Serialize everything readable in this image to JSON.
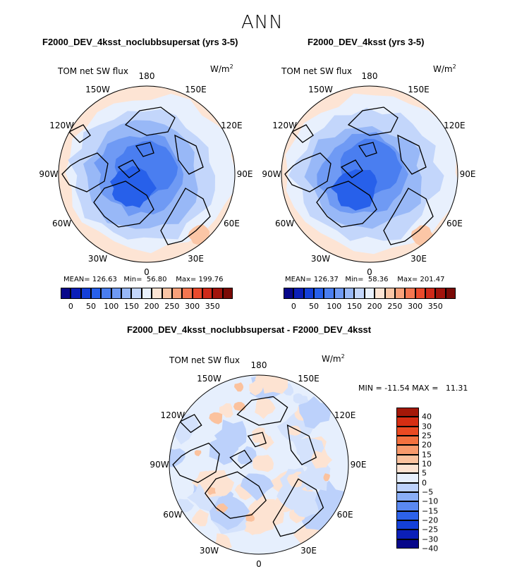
{
  "chart_data": {
    "type": "polar-contour-map",
    "main_title": "ANN",
    "colors": {
      "abs_palette": [
        "#08088a",
        "#0b1fb8",
        "#1440d8",
        "#2760ea",
        "#4a7ef0",
        "#6f9af4",
        "#98b8f7",
        "#c3d6fb",
        "#e8f0fd",
        "#fde4d4",
        "#fbc6a6",
        "#f9a17a",
        "#f47650",
        "#ea4a2c",
        "#cf2a1a",
        "#a2140c",
        "#7a0a06"
      ],
      "diff_palette": [
        "#08088a",
        "#0b1fb8",
        "#1440d8",
        "#2d62ea",
        "#5a88f0",
        "#8aaef6",
        "#bcd1fb",
        "#e6effd",
        "#fde3d2",
        "#fbc29e",
        "#f89a6c",
        "#f3713f",
        "#ea4a22",
        "#d62e13",
        "#a41808"
      ],
      "land_outline": "#000000"
    },
    "panels": [
      {
        "title": "F2000_DEV_4ksst_noclubbsupersat (yrs 3-5)",
        "variable": "TOM net SW flux",
        "units": "W/m",
        "units_exp": "2",
        "stats": {
          "mean_label": "MEAN=",
          "mean": "126.63",
          "min_label": "Min=",
          "min": "56.80",
          "max_label": "Max=",
          "max": "199.76"
        },
        "colorbar_ticks": [
          "0",
          "50",
          "100",
          "150",
          "200",
          "250",
          "300",
          "350"
        ],
        "lon_labels": [
          "180",
          "150E",
          "120E",
          "90E",
          "60E",
          "30E",
          "0",
          "30W",
          "60W",
          "90W",
          "120W",
          "150W"
        ]
      },
      {
        "title": "F2000_DEV_4ksst (yrs 3-5)",
        "variable": "TOM net SW flux",
        "units": "W/m",
        "units_exp": "2",
        "stats": {
          "mean_label": "MEAN=",
          "mean": "126.37",
          "min_label": "Min=",
          "min": "58.36",
          "max_label": "Max=",
          "max": "201.47"
        },
        "colorbar_ticks": [
          "0",
          "50",
          "100",
          "150",
          "200",
          "250",
          "300",
          "350"
        ],
        "lon_labels": [
          "180",
          "150E",
          "120E",
          "90E",
          "60E",
          "30E",
          "0",
          "30W",
          "60W",
          "90W",
          "120W",
          "150W"
        ]
      },
      {
        "title": "F2000_DEV_4ksst_noclubbsupersat - F2000_DEV_4ksst",
        "variable": "TOM net SW flux",
        "units": "W/m",
        "units_exp": "2",
        "stats": {
          "min_label": "MIN =",
          "min": "-11.54",
          "max_label": "MAX =",
          "max": "11.31"
        },
        "colorbar_ticks": [
          "40",
          "30",
          "25",
          "20",
          "15",
          "10",
          "5",
          "0",
          "−5",
          "−10",
          "−15",
          "−20",
          "−25",
          "−30",
          "−40"
        ],
        "lon_labels": [
          "180",
          "150E",
          "120E",
          "90E",
          "60E",
          "30E",
          "0",
          "30W",
          "60W",
          "90W",
          "120W",
          "150W"
        ]
      }
    ]
  }
}
